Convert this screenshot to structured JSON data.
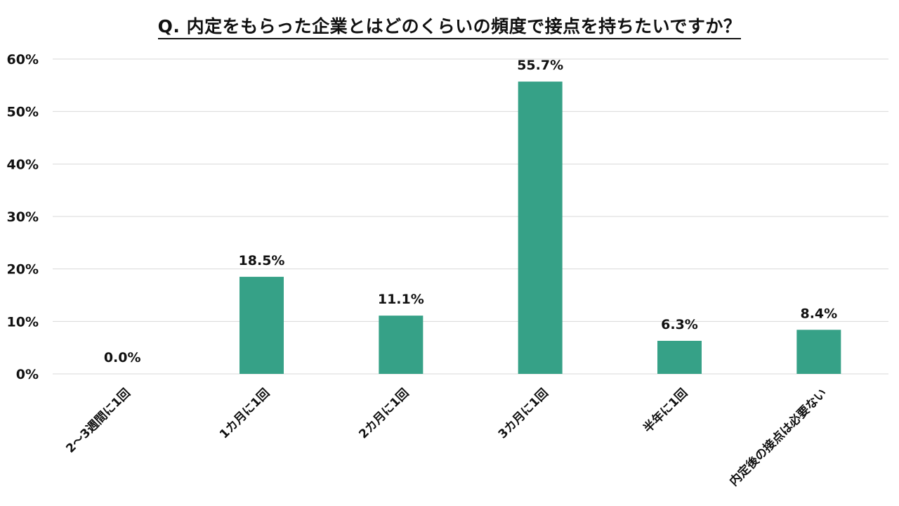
{
  "chart_data": {
    "type": "bar",
    "title": "Q. 内定をもらった企業とはどのくらいの頻度で接点を持ちたいですか？",
    "categories": [
      "2～3週間に1回",
      "1カ月に1回",
      "2カ月に1回",
      "3カ月に1回",
      "半年に1回",
      "内定後の接点は必要ない"
    ],
    "values": [
      0.0,
      18.5,
      11.1,
      55.7,
      6.3,
      8.4
    ],
    "value_labels": [
      "0.0%",
      "18.5%",
      "11.1%",
      "55.7%",
      "6.3%",
      "8.4%"
    ],
    "yticks": [
      0,
      10,
      20,
      30,
      40,
      50,
      60
    ],
    "ytick_labels": [
      "0%",
      "10%",
      "20%",
      "30%",
      "40%",
      "50%",
      "60%"
    ],
    "ylim": [
      0,
      60
    ],
    "grid": true,
    "legend": false,
    "bar_color": "#36a187",
    "grid_color": "#d9d9d9"
  }
}
